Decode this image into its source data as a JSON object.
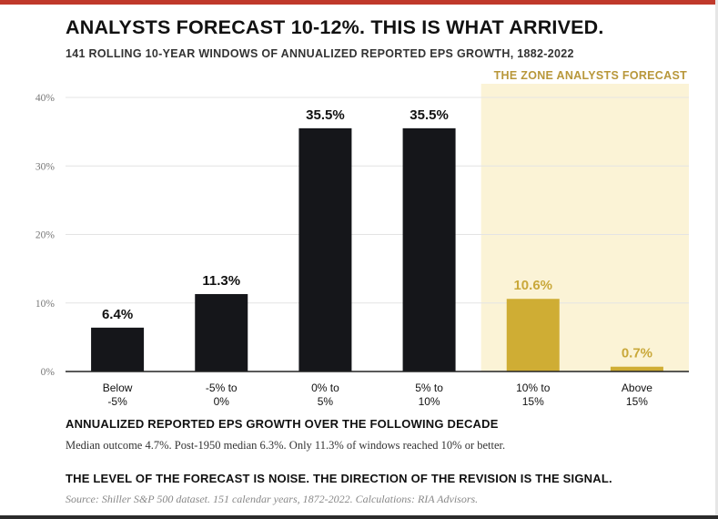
{
  "title": "ANALYSTS FORECAST 10-12%. THIS IS WHAT ARRIVED.",
  "subtitle": "141 ROLLING 10-YEAR WINDOWS OF ANNUALIZED REPORTED EPS GROWTH, 1882-2022",
  "zone_label": "THE ZONE ANALYSTS FORECAST",
  "xlabel": "ANNUALIZED REPORTED EPS GROWTH OVER THE FOLLOWING DECADE",
  "note": "Median outcome 4.7%. Post-1950 median 6.3%. Only 11.3% of windows reached 10% or better.",
  "signal": "THE LEVEL OF THE FORECAST IS NOISE. THE DIRECTION OF THE REVISION IS THE SIGNAL.",
  "source": "Source: Shiller S&P 500 dataset. 151 calendar years, 1872-2022. Calculations: RIA Advisors.",
  "colors": {
    "bar_default": "#15161a",
    "bar_highlight": "#cfad34",
    "zone_fill": "#fbf3d6",
    "label_default": "#111111",
    "label_highlight": "#c9a83a",
    "accent_rule": "#c0392b"
  },
  "chart_data": {
    "type": "bar",
    "categories": [
      [
        "Below",
        "-5%"
      ],
      [
        "-5% to",
        "0%"
      ],
      [
        "0% to",
        "5%"
      ],
      [
        "5% to",
        "10%"
      ],
      [
        "10% to",
        "15%"
      ],
      [
        "Above",
        "15%"
      ]
    ],
    "values": [
      6.4,
      11.3,
      35.5,
      35.5,
      10.6,
      0.7
    ],
    "value_labels": [
      "6.4%",
      "11.3%",
      "35.5%",
      "35.5%",
      "10.6%",
      "0.7%"
    ],
    "highlighted": [
      false,
      false,
      false,
      false,
      true,
      true
    ],
    "ylim": [
      0,
      40
    ],
    "yticks": [
      0,
      10,
      20,
      30,
      40
    ],
    "ytick_labels": [
      "0%",
      "10%",
      "20%",
      "30%",
      "40%"
    ],
    "grid": true,
    "highlight_zone": {
      "from_category": 4,
      "to_category": 5
    }
  }
}
